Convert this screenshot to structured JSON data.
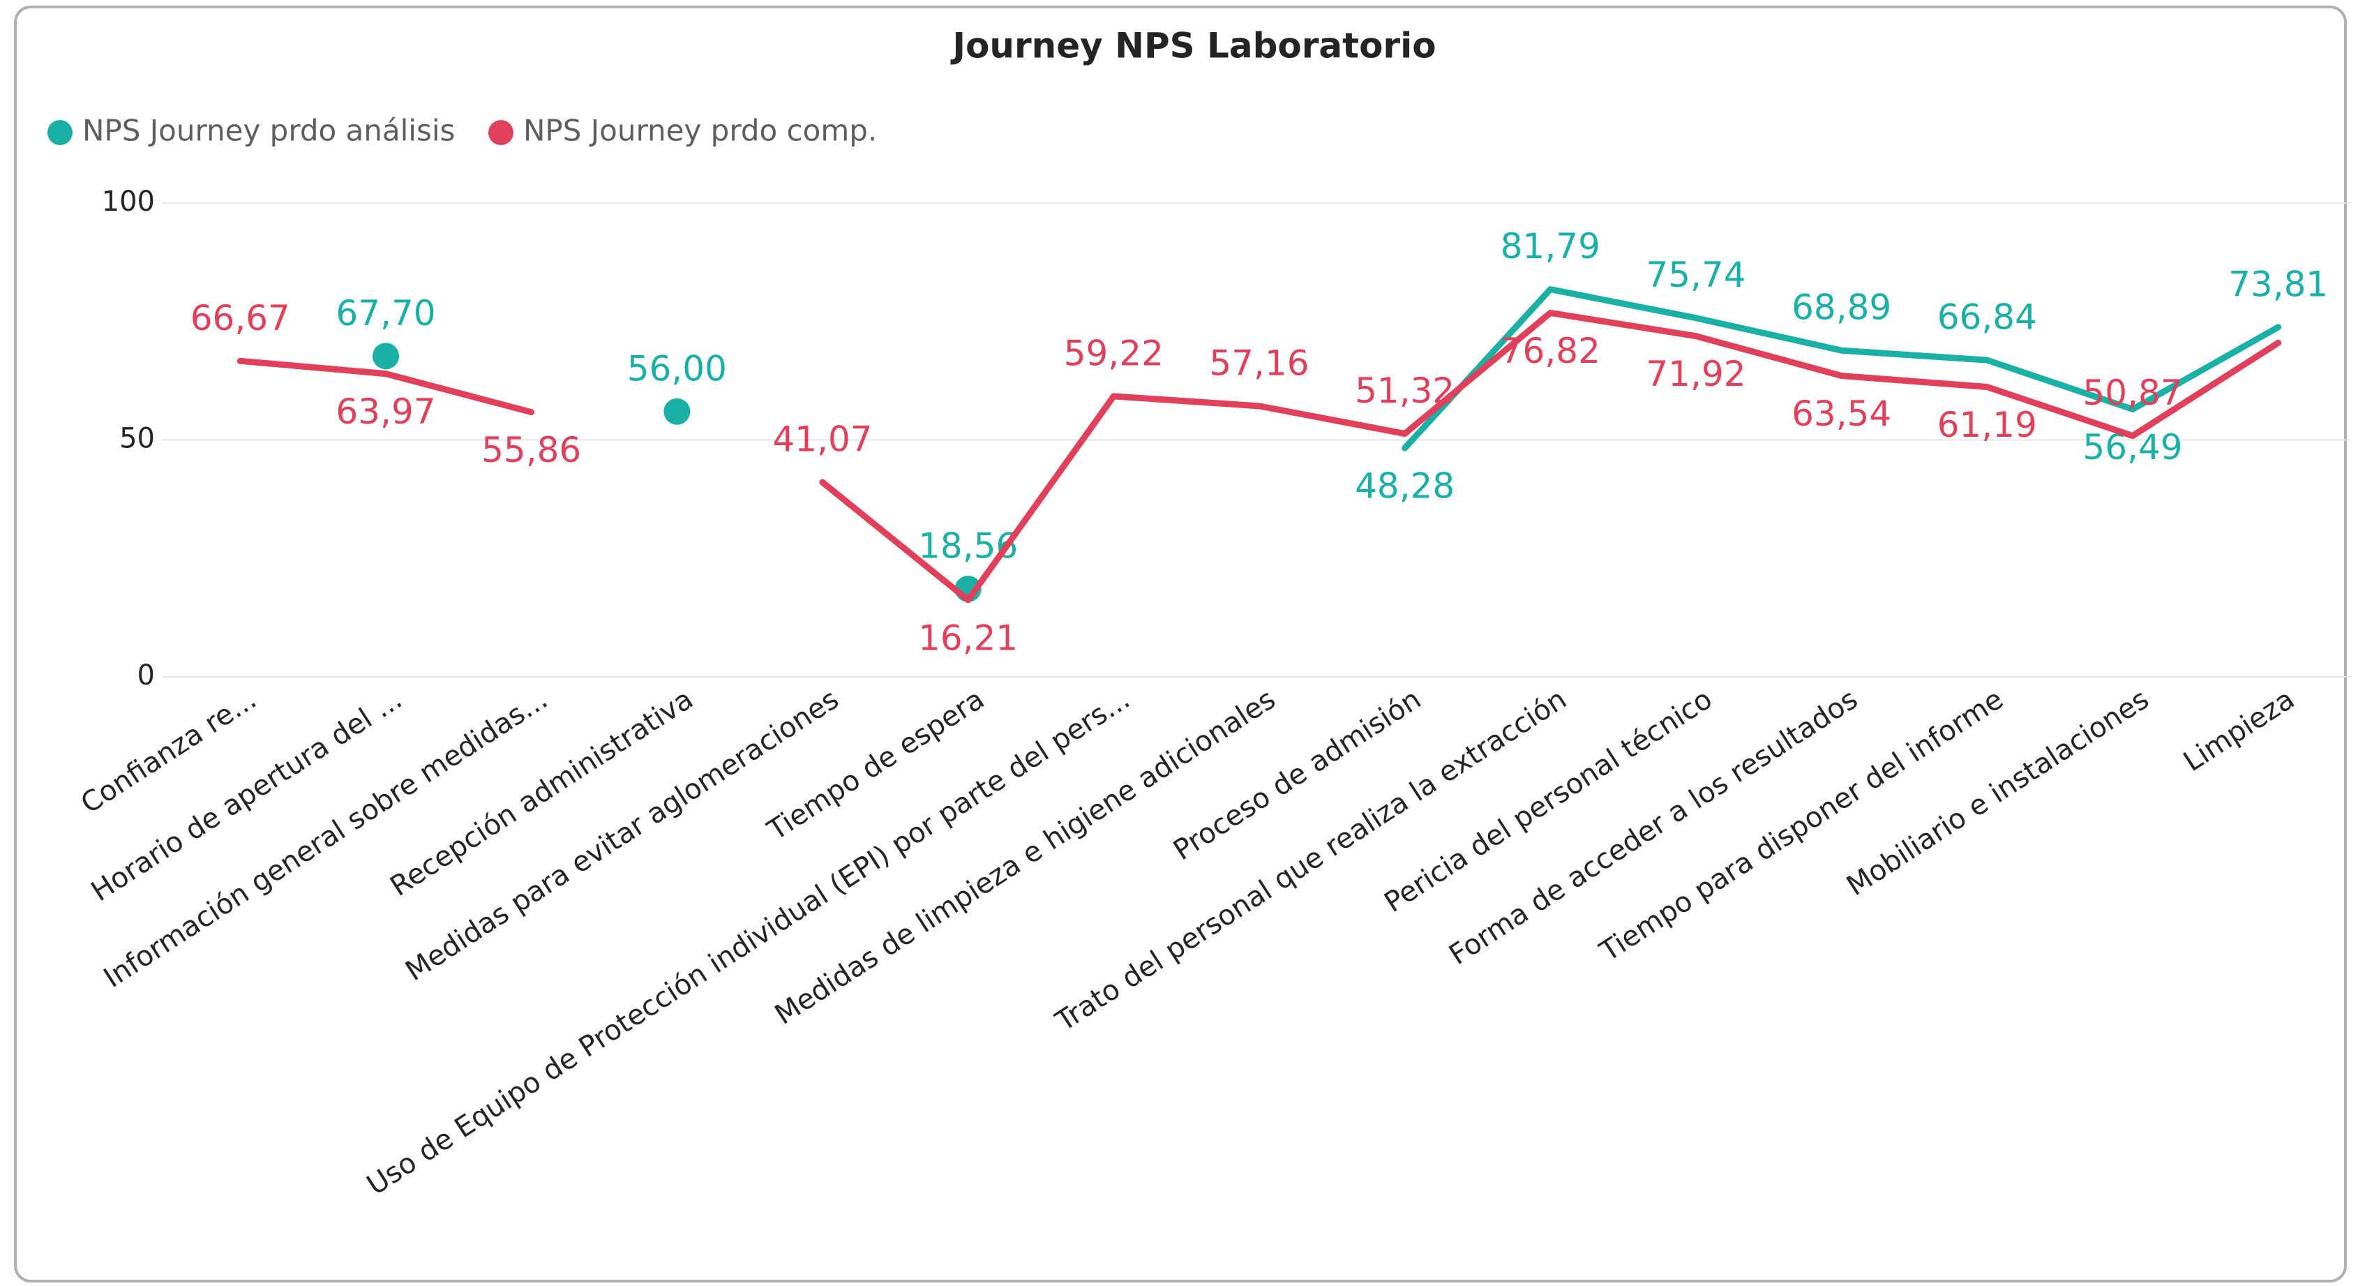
{
  "chart_data": {
    "type": "line",
    "title": "Journey NPS Laboratorio",
    "categories": [
      "Confianza re...",
      "Horario de apertura del ...",
      "Información general sobre medidas...",
      "Recepción administrativa",
      "Medidas para evitar aglomeraciones",
      "Tiempo de espera",
      "Uso de Equipo de Protección individual (EPI) por parte del pers...",
      "Medidas de limpieza e higiene adicionales",
      "Proceso de admisión",
      "Trato del personal que realiza la extracción",
      "Pericia del personal técnico",
      "Forma de acceder a los resultados",
      "Tiempo para disponer del informe",
      "Mobiliario e instalaciones",
      "Limpieza"
    ],
    "series": [
      {
        "name": "NPS Journey prdo análisis",
        "color": "#1ab0a6",
        "values": [
          null,
          67.7,
          null,
          56.0,
          null,
          18.56,
          null,
          null,
          48.28,
          81.79,
          75.74,
          68.89,
          66.84,
          56.49,
          73.81
        ],
        "value_labels": [
          null,
          "67,70",
          null,
          "56,00",
          null,
          "18,56",
          null,
          null,
          "48,28",
          "81,79",
          "75,74",
          "68,89",
          "66,84",
          "56,49",
          "73,81"
        ]
      },
      {
        "name": "NPS Journey prdo comp.",
        "color": "#e0405a",
        "values": [
          66.67,
          63.97,
          55.86,
          null,
          41.07,
          16.21,
          59.22,
          57.16,
          51.32,
          76.82,
          71.92,
          63.54,
          61.19,
          50.87,
          70.5
        ],
        "value_labels": [
          "66,67",
          "63,97",
          "55,86",
          null,
          "41,07",
          "16,21",
          "59,22",
          "57,16",
          "51,32",
          "76,82",
          "71,92",
          "63,54",
          "61,19",
          "50,87",
          null
        ]
      }
    ],
    "ylim": [
      0,
      100
    ],
    "yticks": [
      0,
      50,
      100
    ],
    "grid": true
  }
}
